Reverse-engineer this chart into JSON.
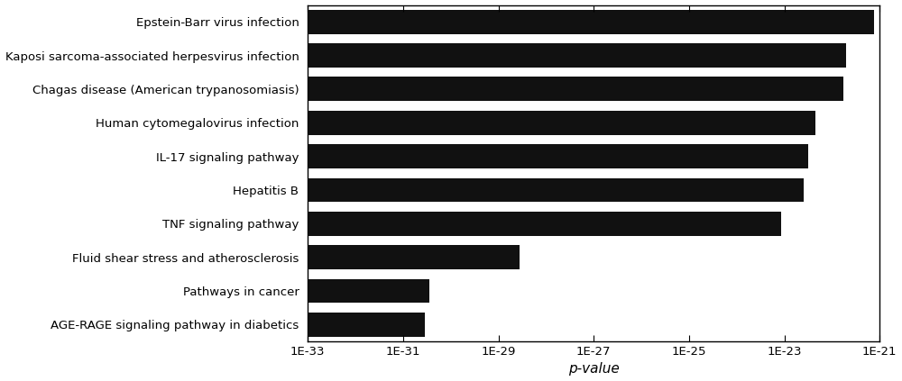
{
  "categories": [
    "AGE-RAGE signaling pathway in diabetics",
    "Pathways in cancer",
    "Fluid shear stress and atherosclerosis",
    "TNF signaling pathway",
    "Hepatitis B",
    "IL-17 signaling pathway",
    "Human cytomegalovirus infection",
    "Chagas disease (American trypanosomiasis)",
    "Kaposi sarcoma-associated herpesvirus infection",
    "Epstein-Barr virus infection"
  ],
  "values": [
    2.8e-31,
    3.5e-31,
    2.8e-29,
    8.5e-24,
    2.5e-23,
    3.2e-23,
    4.5e-23,
    1.7e-22,
    2e-22,
    7.5e-22
  ],
  "bar_color": "#111111",
  "xtick_labels": [
    "1E-33",
    "1E-31",
    "1E-29",
    "1E-27",
    "1E-25",
    "1E-23",
    "1E-21"
  ],
  "xtick_values": [
    1e-33,
    1e-31,
    1e-29,
    1e-27,
    1e-25,
    1e-23,
    1e-21
  ],
  "xlabel": "p-value",
  "bar_height": 0.72,
  "background_color": "#ffffff",
  "label_fontsize": 9.5,
  "tick_fontsize": 9.5,
  "xlabel_fontsize": 11,
  "figsize": [
    10.0,
    4.23
  ],
  "dpi": 100
}
